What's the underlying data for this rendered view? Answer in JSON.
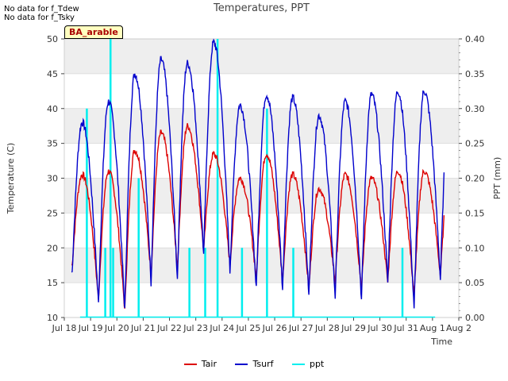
{
  "notes": [
    "No data for f_Tdew",
    "No data for f_Tsky"
  ],
  "badge": "BA_arable",
  "chart_data": {
    "type": "line",
    "title": "Temperatures, PPT",
    "xlabel": "Time",
    "ylabel": "Temperature (C)",
    "y2label": "PPT (mm)",
    "xlim": [
      18,
      33
    ],
    "ylim": [
      10,
      50
    ],
    "y2lim": [
      0,
      0.4
    ],
    "x_ticks": [
      18,
      19,
      20,
      21,
      22,
      23,
      24,
      25,
      26,
      27,
      28,
      29,
      30,
      31,
      32,
      33
    ],
    "x_tick_labels": [
      "Jul 18",
      "Jul 19",
      "Jul 20",
      "Jul 21",
      "Jul 22",
      "Jul 23",
      "Jul 24",
      "Jul 25",
      "Jul 26",
      "Jul 27",
      "Jul 28",
      "Jul 29",
      "Jul 30",
      "Jul 31",
      "Aug 1",
      "Aug 2"
    ],
    "y_ticks": [
      10,
      15,
      20,
      25,
      30,
      35,
      40,
      45,
      50
    ],
    "y2_ticks": [
      0.0,
      0.05,
      0.1,
      0.15,
      0.2,
      0.25,
      0.3,
      0.35,
      0.4
    ],
    "y2_tick_labels": [
      "0.00",
      "0.05",
      "0.10",
      "0.15",
      "0.20",
      "0.25",
      "0.30",
      "0.35",
      "0.40"
    ],
    "days": {
      "x": [
        18.3,
        19.3,
        20.3,
        21.3,
        22.3,
        23.3,
        24.3,
        25.3,
        26.3,
        27.3,
        28.3,
        29.3,
        30.3,
        31.3,
        32.3
      ],
      "tair_max": [
        30.5,
        31,
        34,
        36.5,
        37.5,
        33.5,
        30,
        33.5,
        30.5,
        28.5,
        30.5,
        30,
        31,
        31,
        null
      ],
      "tair_min": [
        17.5,
        12.5,
        11,
        16,
        17,
        19.5,
        17.5,
        15.5,
        15,
        14,
        15,
        14,
        15,
        13,
        16
      ],
      "tsurf_max": [
        38,
        41,
        45,
        47,
        46.5,
        49.5,
        40.5,
        42,
        41.5,
        39,
        41,
        42,
        42.5,
        42.5,
        null
      ],
      "tsurf_min": [
        16.5,
        12,
        11,
        15,
        15.5,
        19,
        16.5,
        14,
        14,
        13,
        13,
        12.5,
        15,
        11,
        15.5
      ]
    },
    "series": [
      {
        "name": "Tair",
        "color": "#dd0000"
      },
      {
        "name": "Tsurf",
        "color": "#0000cc"
      },
      {
        "name": "ppt",
        "color": "#00eeee",
        "events": [
          {
            "x": 18.85,
            "value": 0.3
          },
          {
            "x": 19.55,
            "value": 0.1
          },
          {
            "x": 19.75,
            "value": 0.4
          },
          {
            "x": 19.85,
            "value": 0.1
          },
          {
            "x": 20.82,
            "value": 0.2
          },
          {
            "x": 22.75,
            "value": 0.1
          },
          {
            "x": 23.35,
            "value": 0.1
          },
          {
            "x": 23.82,
            "value": 0.4
          },
          {
            "x": 24.75,
            "value": 0.1
          },
          {
            "x": 25.7,
            "value": 0.3
          },
          {
            "x": 26.7,
            "value": 0.1
          },
          {
            "x": 30.85,
            "value": 0.1
          }
        ]
      }
    ]
  }
}
